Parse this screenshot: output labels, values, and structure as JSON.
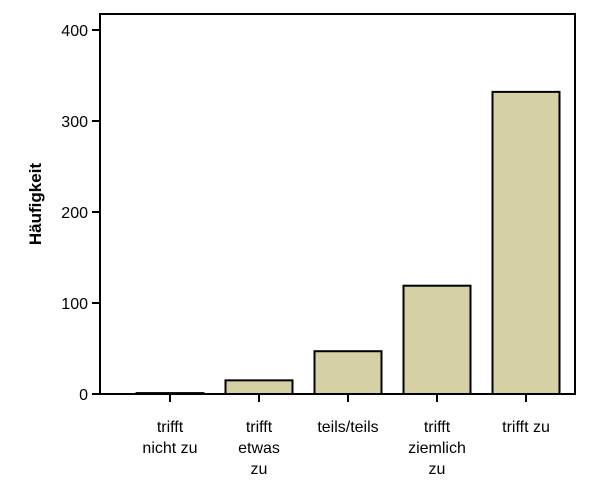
{
  "chart_data": {
    "type": "bar",
    "title": "",
    "xlabel": "",
    "ylabel": "Häufigkeit",
    "categories": [
      [
        "trifft",
        "nicht zu"
      ],
      [
        "trifft",
        "etwas",
        "zu"
      ],
      [
        "teils/teils"
      ],
      [
        "trifft",
        "ziemlich",
        "zu"
      ],
      [
        "trifft zu"
      ]
    ],
    "values": [
      1,
      15,
      47,
      119,
      332
    ],
    "ylim": [
      0,
      420
    ],
    "yticks": [
      0,
      100,
      200,
      300,
      400
    ],
    "grid": false,
    "legend": "none",
    "colors": {
      "bar_fill": "#d6d1a4",
      "bar_stroke": "#000000",
      "axis": "#000000"
    }
  }
}
